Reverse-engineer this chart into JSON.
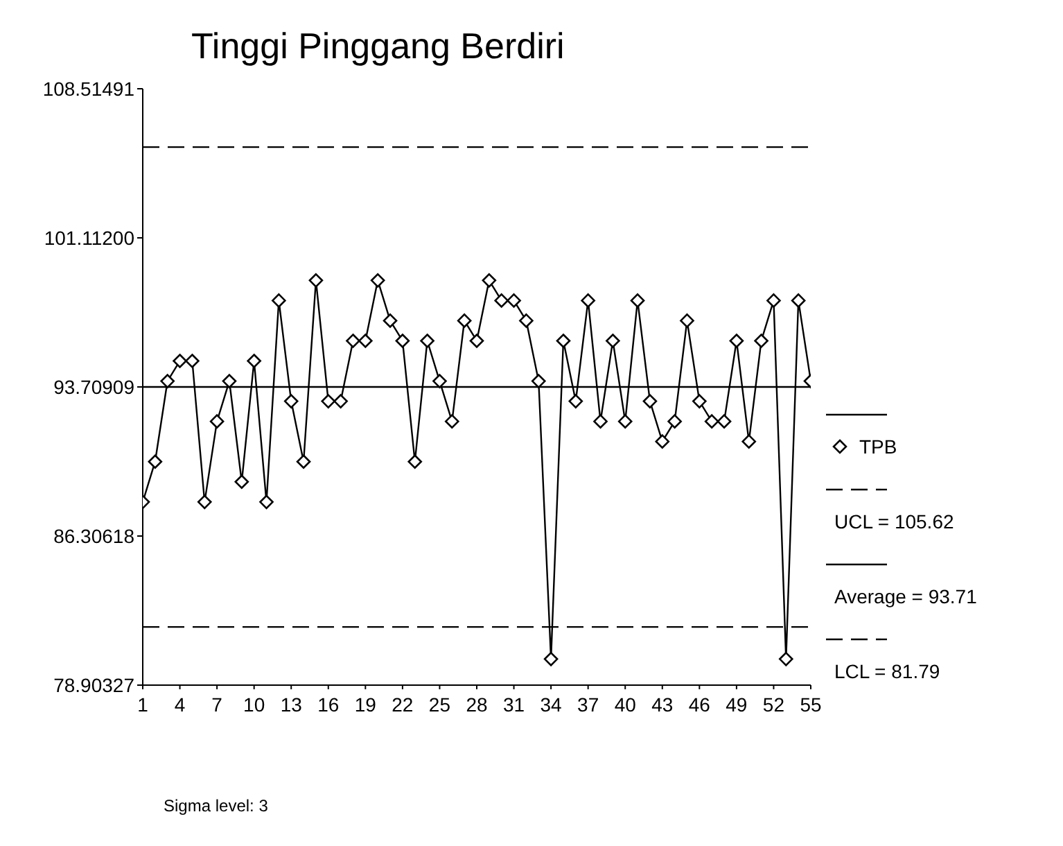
{
  "chart_data": {
    "type": "line",
    "title": "Tinggi Pinggang Berdiri",
    "x": [
      1,
      2,
      3,
      4,
      5,
      6,
      7,
      8,
      9,
      10,
      11,
      12,
      13,
      14,
      15,
      16,
      17,
      18,
      19,
      20,
      21,
      22,
      23,
      24,
      25,
      26,
      27,
      28,
      29,
      30,
      31,
      32,
      33,
      34,
      35,
      36,
      37,
      38,
      39,
      40,
      41,
      42,
      43,
      44,
      45,
      46,
      47,
      48,
      49,
      50,
      51,
      52,
      53,
      54,
      55
    ],
    "series": [
      {
        "name": "TPB",
        "color": "#000000",
        "values": [
          88,
          90,
          94,
          95,
          95,
          88,
          92,
          94,
          89,
          95,
          88,
          98,
          93,
          90,
          99,
          93,
          93,
          96,
          96,
          99,
          97,
          96,
          90,
          96,
          94,
          92,
          97,
          96,
          99,
          98,
          98,
          97,
          94,
          80.2,
          96,
          93,
          98,
          92,
          96,
          92,
          98,
          93,
          91,
          92,
          97,
          93,
          92,
          92,
          96,
          91,
          96,
          98,
          80.2,
          98,
          94
        ]
      }
    ],
    "xlim": [
      1,
      55
    ],
    "xticks": [
      1,
      4,
      7,
      10,
      13,
      16,
      19,
      22,
      25,
      28,
      31,
      34,
      37,
      40,
      43,
      46,
      49,
      52,
      55
    ],
    "ylim": [
      78.90327,
      108.51491
    ],
    "yticks": [
      {
        "value": 78.90327,
        "label": "78.90327"
      },
      {
        "value": 86.30618,
        "label": "86.30618"
      },
      {
        "value": 93.70909,
        "label": "93.70909"
      },
      {
        "value": 101.112,
        "label": "101.11200"
      },
      {
        "value": 108.51491,
        "label": "108.51491"
      }
    ],
    "ref_lines": [
      {
        "axis": "y",
        "value": 105.62,
        "label": "UCL = 105.62",
        "color": "#000000",
        "line_style": "dashed"
      },
      {
        "axis": "y",
        "value": 93.71,
        "label": "Average = 93.71",
        "color": "#000000",
        "line_style": "solid"
      },
      {
        "axis": "y",
        "value": 81.79,
        "label": "LCL = 81.79",
        "color": "#000000",
        "line_style": "dashed"
      }
    ],
    "annotations": [
      "Sigma level: 3"
    ],
    "marker": "diamond",
    "line_style": "solid",
    "grid": false,
    "legend": "right"
  }
}
